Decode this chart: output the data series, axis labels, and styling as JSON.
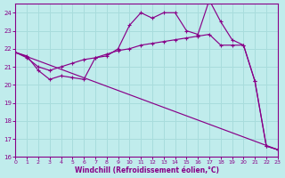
{
  "bg_color": "#c0ecec",
  "grid_color": "#a8dcdc",
  "line_color": "#880088",
  "xlim": [
    0,
    23
  ],
  "ylim": [
    16,
    24.5
  ],
  "yticks": [
    16,
    17,
    18,
    19,
    20,
    21,
    22,
    23,
    24
  ],
  "xticks": [
    0,
    1,
    2,
    3,
    4,
    5,
    6,
    7,
    8,
    9,
    10,
    11,
    12,
    13,
    14,
    15,
    16,
    17,
    18,
    19,
    20,
    21,
    22,
    23
  ],
  "xlabel": "Windchill (Refroidissement éolien,°C)",
  "lines": [
    {
      "x": [
        0,
        1,
        2,
        3,
        4,
        5,
        6,
        7,
        8,
        9,
        10,
        11,
        12,
        13,
        14,
        15,
        16,
        17,
        18,
        19,
        20,
        21,
        22,
        23
      ],
      "y": [
        21.8,
        21.6,
        20.8,
        20.3,
        20.5,
        20.4,
        20.3,
        21.5,
        21.6,
        22.0,
        23.3,
        24.0,
        23.7,
        24.0,
        24.0,
        23.0,
        22.8,
        24.7,
        23.5,
        22.5,
        22.2,
        20.2,
        16.6,
        16.4
      ]
    },
    {
      "x": [
        0,
        1,
        2,
        3,
        4,
        5,
        6,
        7,
        8,
        9,
        10,
        11,
        12,
        13,
        14,
        15,
        16,
        17,
        18,
        19,
        20,
        21,
        22,
        23
      ],
      "y": [
        21.8,
        21.5,
        21.0,
        20.8,
        21.0,
        21.2,
        21.4,
        21.5,
        21.7,
        21.9,
        22.0,
        22.2,
        22.3,
        22.4,
        22.5,
        22.6,
        22.7,
        22.8,
        22.2,
        22.2,
        22.2,
        20.2,
        16.6,
        16.4
      ]
    },
    {
      "x": [
        0,
        23
      ],
      "y": [
        21.8,
        16.4
      ]
    }
  ]
}
